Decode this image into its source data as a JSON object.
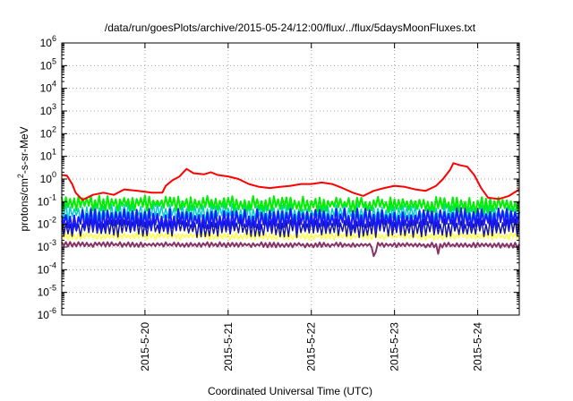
{
  "chart_data": {
    "type": "line",
    "title": "/data/run/goesPlots/archive/2015-05-24/12:00/flux/../flux/5daysMoonFluxes.txt",
    "xlabel": "Coordinated Universal Time (UTC)",
    "ylabel": "protons/cm²-s-sr-MeV",
    "ylabel_parts": {
      "pre": "protons/cm",
      "sup": "2",
      "post": "-s-sr-MeV"
    },
    "yscale": "log",
    "ylim_exp": [
      -6,
      6
    ],
    "y_tick_exponents": [
      -6,
      -5,
      -4,
      -3,
      -2,
      -1,
      0,
      1,
      2,
      3,
      4,
      5,
      6
    ],
    "y_tick_base": "10",
    "xlim": [
      "2015-05-19T00:00",
      "2015-05-24T12:00"
    ],
    "x_ticks": [
      {
        "label": "2015-5-20",
        "t": "2015-05-20T00:00"
      },
      {
        "label": "2015-5-21",
        "t": "2015-05-21T00:00"
      },
      {
        "label": "2015-5-22",
        "t": "2015-05-22T00:00"
      },
      {
        "label": "2015-5-23",
        "t": "2015-05-23T00:00"
      },
      {
        "label": "2015-5-24",
        "t": "2015-05-24T00:00"
      }
    ],
    "grid": true,
    "legend": "none",
    "series": [
      {
        "color": "#ff0000",
        "width": 2,
        "points": [
          [
            "2015-05-19T00:00",
            1.5
          ],
          [
            "2015-05-19T01:30",
            1.4
          ],
          [
            "2015-05-19T03:00",
            0.6
          ],
          [
            "2015-05-19T04:00",
            0.25
          ],
          [
            "2015-05-19T06:00",
            0.12
          ],
          [
            "2015-05-19T09:00",
            0.2
          ],
          [
            "2015-05-19T12:00",
            0.25
          ],
          [
            "2015-05-19T15:00",
            0.2
          ],
          [
            "2015-05-19T18:00",
            0.35
          ],
          [
            "2015-05-19T22:00",
            0.3
          ],
          [
            "2015-05-20T02:00",
            0.25
          ],
          [
            "2015-05-20T05:00",
            0.25
          ],
          [
            "2015-05-20T06:00",
            0.5
          ],
          [
            "2015-05-20T08:00",
            0.9
          ],
          [
            "2015-05-20T10:00",
            1.3
          ],
          [
            "2015-05-20T12:00",
            2.8
          ],
          [
            "2015-05-20T14:00",
            1.8
          ],
          [
            "2015-05-20T17:00",
            1.6
          ],
          [
            "2015-05-20T19:00",
            2.0
          ],
          [
            "2015-05-20T21:00",
            1.5
          ],
          [
            "2015-05-21T00:00",
            1.3
          ],
          [
            "2015-05-21T03:00",
            1.0
          ],
          [
            "2015-05-21T06:00",
            0.6
          ],
          [
            "2015-05-21T09:00",
            0.45
          ],
          [
            "2015-05-21T12:00",
            0.4
          ],
          [
            "2015-05-21T15:00",
            0.45
          ],
          [
            "2015-05-21T18:00",
            0.5
          ],
          [
            "2015-05-21T21:00",
            0.6
          ],
          [
            "2015-05-22T00:00",
            0.6
          ],
          [
            "2015-05-22T03:00",
            0.7
          ],
          [
            "2015-05-22T06:00",
            0.6
          ],
          [
            "2015-05-22T09:00",
            0.4
          ],
          [
            "2015-05-22T12:00",
            0.25
          ],
          [
            "2015-05-22T15:00",
            0.18
          ],
          [
            "2015-05-22T18:00",
            0.3
          ],
          [
            "2015-05-22T21:00",
            0.4
          ],
          [
            "2015-05-23T00:00",
            0.5
          ],
          [
            "2015-05-23T03:00",
            0.45
          ],
          [
            "2015-05-23T06:00",
            0.35
          ],
          [
            "2015-05-23T09:00",
            0.3
          ],
          [
            "2015-05-23T12:00",
            0.5
          ],
          [
            "2015-05-23T14:00",
            1.0
          ],
          [
            "2015-05-23T16:00",
            2.5
          ],
          [
            "2015-05-23T17:00",
            5.0
          ],
          [
            "2015-05-23T19:00",
            4.0
          ],
          [
            "2015-05-23T21:00",
            3.5
          ],
          [
            "2015-05-23T23:00",
            1.5
          ],
          [
            "2015-05-24T01:00",
            0.4
          ],
          [
            "2015-05-24T03:00",
            0.15
          ],
          [
            "2015-05-24T06:00",
            0.13
          ],
          [
            "2015-05-24T09:00",
            0.18
          ],
          [
            "2015-05-24T12:00",
            0.35
          ]
        ]
      },
      {
        "color": "#00ee00",
        "width": 2,
        "points": [
          [
            "2015-05-19T00:00",
            0.09
          ],
          [
            "2015-05-24T12:00",
            0.07
          ]
        ]
      },
      {
        "color": "#00cccc",
        "width": 1.5,
        "points": [
          [
            "2015-05-19T00:00",
            0.035
          ],
          [
            "2015-05-24T12:00",
            0.03
          ]
        ]
      },
      {
        "color": "#1a1aff",
        "width": 2,
        "points": [
          [
            "2015-05-19T00:00",
            0.015
          ],
          [
            "2015-05-24T12:00",
            0.018
          ]
        ]
      },
      {
        "color": "#1414a0",
        "width": 1.5,
        "points": [
          [
            "2015-05-19T00:00",
            0.007
          ],
          [
            "2015-05-24T12:00",
            0.007
          ]
        ]
      },
      {
        "color": "#ffff44",
        "width": 1.5,
        "points": [
          [
            "2015-05-19T00:00",
            0.003
          ],
          [
            "2015-05-24T12:00",
            0.003
          ]
        ]
      },
      {
        "color": "#883366",
        "width": 2,
        "points": [
          [
            "2015-05-19T00:00",
            0.0013
          ],
          [
            "2015-05-24T12:00",
            0.0012
          ]
        ]
      }
    ]
  }
}
